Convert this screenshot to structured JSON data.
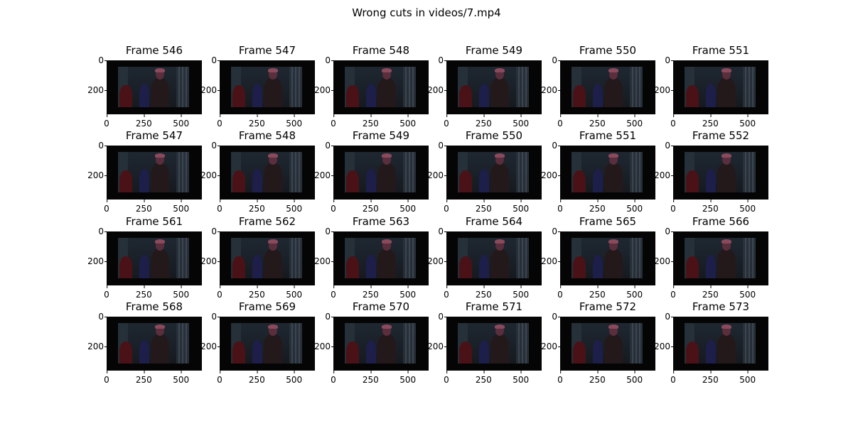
{
  "figure": {
    "title": "Wrong cuts in videos/7.mp4"
  },
  "axes": {
    "yticks": [
      {
        "label": "0",
        "value": 0
      },
      {
        "label": "200",
        "value": 200
      }
    ],
    "xticks": [
      {
        "label": "0",
        "value": 0
      },
      {
        "label": "250",
        "value": 250
      },
      {
        "label": "500",
        "value": 500
      }
    ],
    "x_range": [
      0,
      640
    ],
    "y_range": [
      0,
      360
    ]
  },
  "rows": [
    [
      "Frame 546",
      "Frame 547",
      "Frame 548",
      "Frame 549",
      "Frame 550",
      "Frame 551"
    ],
    [
      "Frame 547",
      "Frame 548",
      "Frame 549",
      "Frame 550",
      "Frame 551",
      "Frame 552"
    ],
    [
      "Frame 561",
      "Frame 562",
      "Frame 563",
      "Frame 564",
      "Frame 565",
      "Frame 566"
    ],
    [
      "Frame 568",
      "Frame 569",
      "Frame 570",
      "Frame 571",
      "Frame 572",
      "Frame 573"
    ]
  ]
}
